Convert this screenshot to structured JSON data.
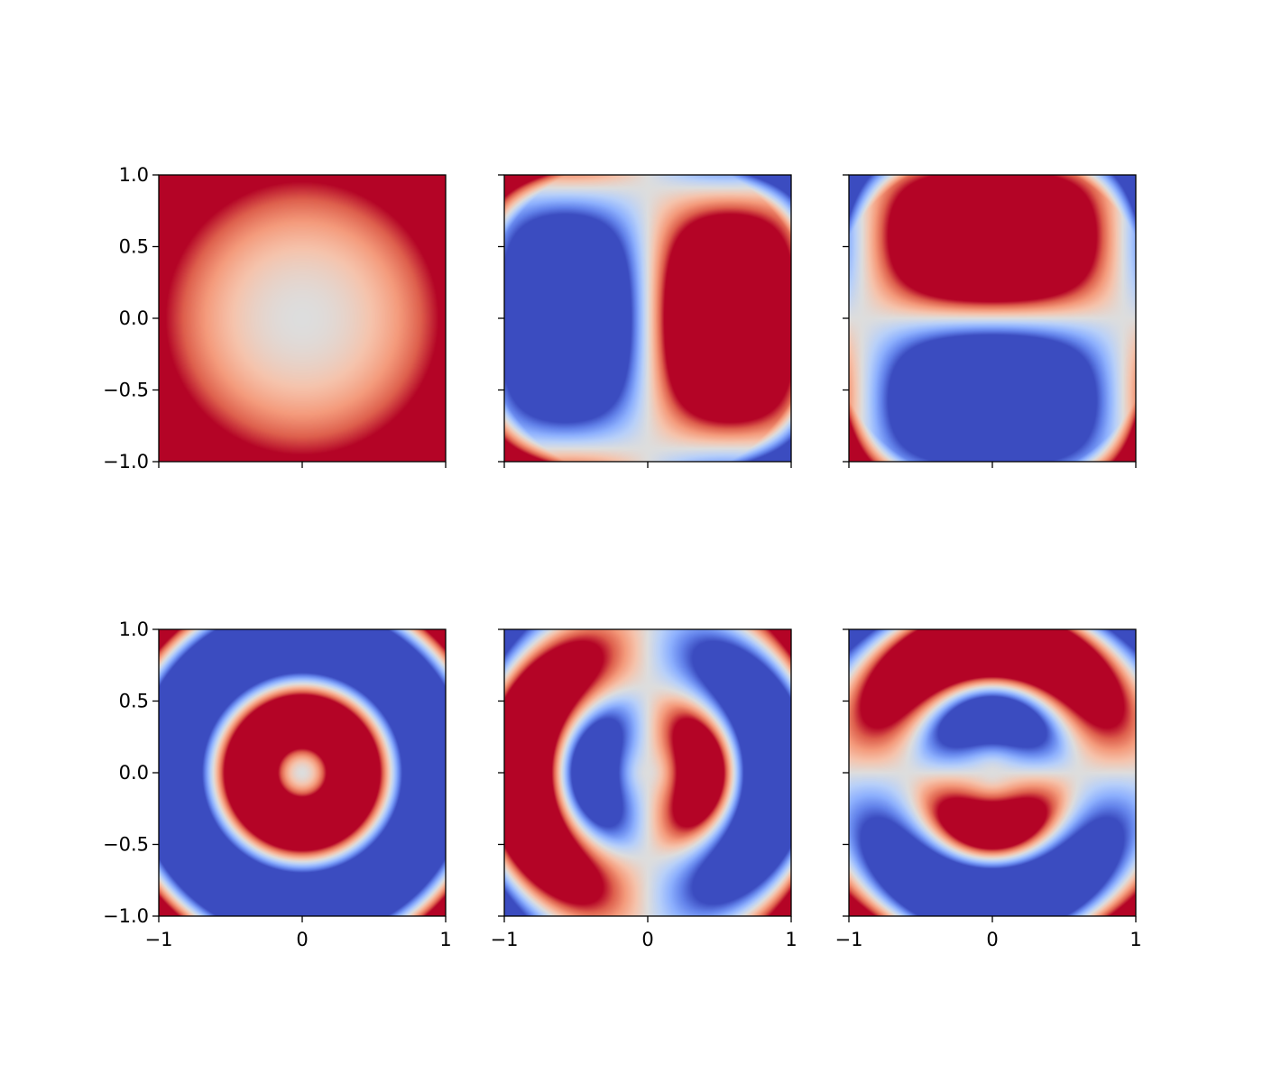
{
  "chart_data": [
    {
      "type": "heatmap",
      "colormap": "coolwarm",
      "xlim": [
        -1,
        1
      ],
      "ylim": [
        -1,
        1
      ],
      "xticks": [
        -1,
        0,
        1
      ],
      "yticks": [
        -1.0,
        -0.5,
        0.0,
        0.5,
        1.0
      ],
      "show_xticklabels": false,
      "show_yticklabels": true
    },
    {
      "type": "heatmap",
      "colormap": "coolwarm",
      "xlim": [
        -1,
        1
      ],
      "ylim": [
        -1,
        1
      ],
      "xticks": [
        -1,
        0,
        1
      ],
      "yticks": [
        -1.0,
        -0.5,
        0.0,
        0.5,
        1.0
      ],
      "show_xticklabels": false,
      "show_yticklabels": false
    },
    {
      "type": "heatmap",
      "colormap": "coolwarm",
      "xlim": [
        -1,
        1
      ],
      "ylim": [
        -1,
        1
      ],
      "xticks": [
        -1,
        0,
        1
      ],
      "yticks": [
        -1.0,
        -0.5,
        0.0,
        0.5,
        1.0
      ],
      "show_xticklabels": false,
      "show_yticklabels": false
    },
    {
      "type": "heatmap",
      "colormap": "coolwarm",
      "xlim": [
        -1,
        1
      ],
      "ylim": [
        -1,
        1
      ],
      "xticks": [
        -1,
        0,
        1
      ],
      "yticks": [
        -1.0,
        -0.5,
        0.0,
        0.5,
        1.0
      ],
      "show_xticklabels": true,
      "show_yticklabels": true
    },
    {
      "type": "heatmap",
      "colormap": "coolwarm",
      "xlim": [
        -1,
        1
      ],
      "ylim": [
        -1,
        1
      ],
      "xticks": [
        -1,
        0,
        1
      ],
      "yticks": [
        -1.0,
        -0.5,
        0.0,
        0.5,
        1.0
      ],
      "show_xticklabels": true,
      "show_yticklabels": false
    },
    {
      "type": "heatmap",
      "colormap": "coolwarm",
      "xlim": [
        -1,
        1
      ],
      "ylim": [
        -1,
        1
      ],
      "xticks": [
        -1,
        0,
        1
      ],
      "yticks": [
        -1.0,
        -0.5,
        0.0,
        0.5,
        1.0
      ],
      "show_xticklabels": true,
      "show_yticklabels": false
    }
  ],
  "labels": {
    "xtick_labels": [
      "−1",
      "0",
      "1"
    ],
    "ytick_labels": [
      "−1.0",
      "−0.5",
      "0.0",
      "0.5",
      "1.0"
    ]
  }
}
